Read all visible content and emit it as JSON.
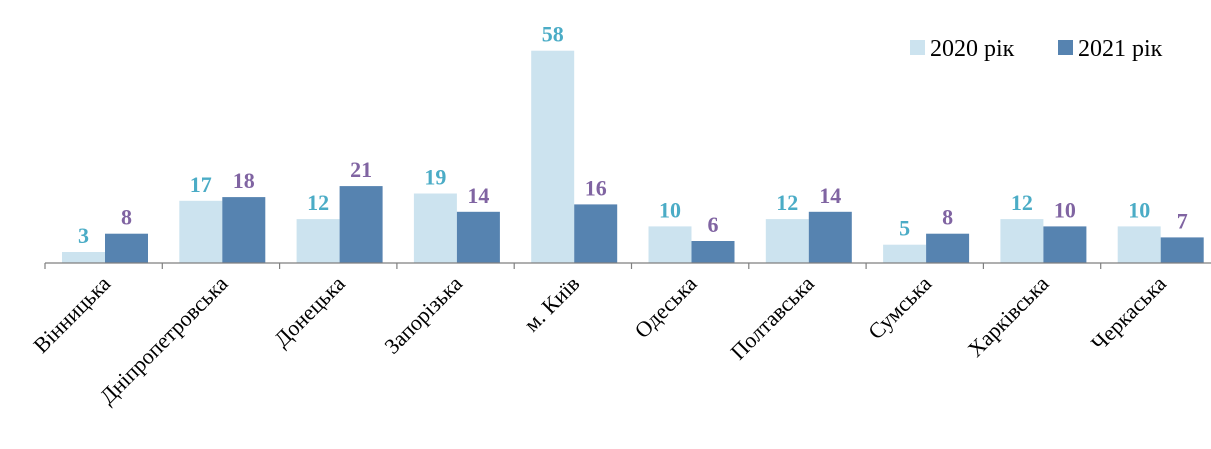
{
  "chart_data": {
    "type": "bar",
    "title": "",
    "xlabel": "",
    "ylabel": "",
    "ylim": [
      0,
      60
    ],
    "grid": false,
    "legend_position": "top-right",
    "categories": [
      "Вінницька",
      "Дніпропетровська",
      "Донецька",
      "Запорізька",
      "м. Київ",
      "Одеська",
      "Полтавська",
      "Сумська",
      "Харківська",
      "Черкаська"
    ],
    "series": [
      {
        "name": "2020 рік",
        "color": "#cce3ef",
        "label_color": "#4bacc6",
        "values": [
          3,
          17,
          12,
          19,
          58,
          10,
          12,
          5,
          12,
          10
        ]
      },
      {
        "name": "2021 рік",
        "color": "#5683b0",
        "label_color": "#8064a2",
        "values": [
          8,
          18,
          21,
          14,
          16,
          6,
          14,
          8,
          10,
          7
        ]
      }
    ]
  }
}
